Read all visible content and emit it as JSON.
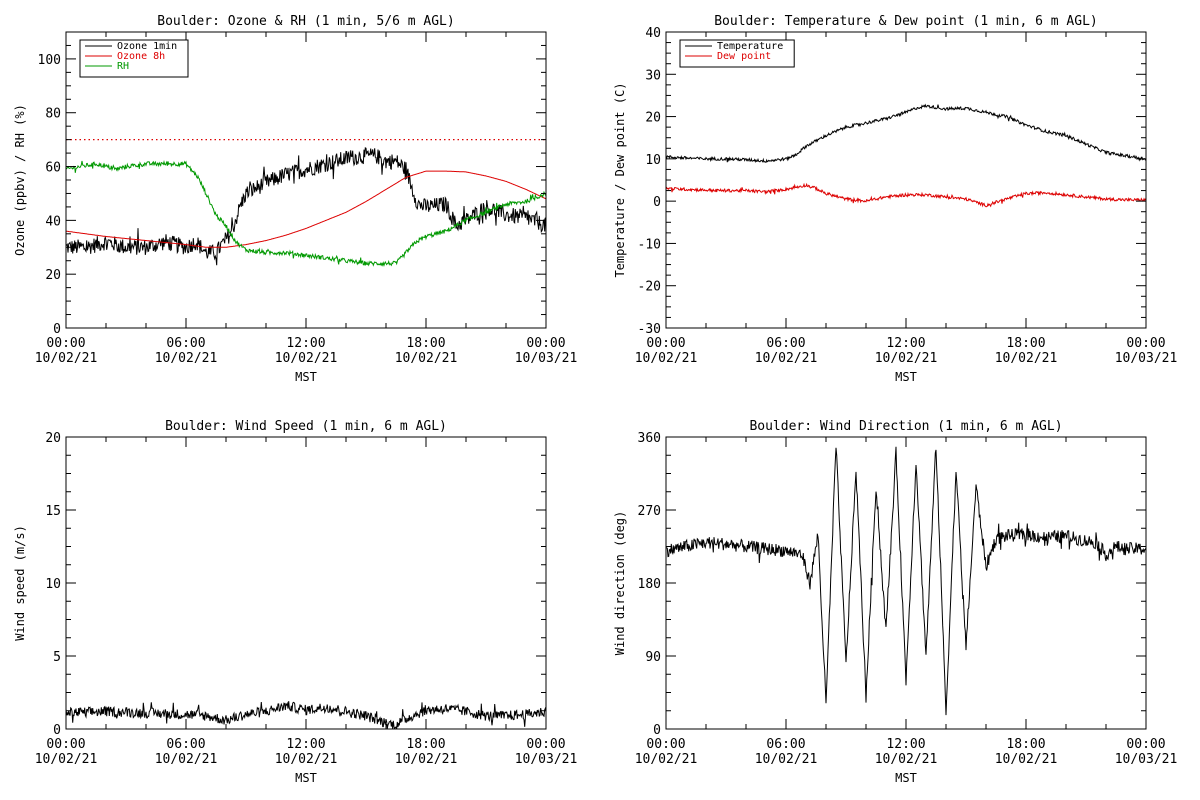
{
  "chart_data": [
    {
      "type": "line",
      "title": "Boulder: Ozone & RH (1 min, 5/6 m AGL)",
      "xlabel": "MST",
      "ylabel": "Ozone (ppbv) / RH (%)",
      "xlim": [
        0,
        24
      ],
      "ylim": [
        0,
        110
      ],
      "x_ticks": [
        0,
        6,
        12,
        18,
        24
      ],
      "x_tick_labels": [
        [
          "00:00",
          "10/02/21"
        ],
        [
          "06:00",
          "10/02/21"
        ],
        [
          "12:00",
          "10/02/21"
        ],
        [
          "18:00",
          "10/02/21"
        ],
        [
          "00:00",
          "10/03/21"
        ]
      ],
      "y_ticks": [
        0,
        20,
        40,
        60,
        80,
        100
      ],
      "legend": {
        "placement": "top-left"
      },
      "reference_lines": [
        {
          "y": 70,
          "style": "dotted",
          "color": "#dd0000"
        }
      ],
      "series": [
        {
          "name": "Ozone 1min",
          "color": "#000000",
          "noise": 3,
          "x": [
            0,
            1,
            2,
            3,
            4,
            5,
            6,
            6.5,
            7,
            7.5,
            8,
            8.3,
            8.7,
            9,
            10,
            11,
            12,
            13,
            14,
            15,
            15.5,
            16,
            16.5,
            17,
            17.3,
            17.6,
            18,
            19,
            19.5,
            20,
            21,
            22,
            23,
            24
          ],
          "y": [
            30,
            30,
            32,
            30,
            30,
            32,
            30,
            32,
            28,
            28,
            33,
            36,
            45,
            50,
            54,
            57,
            59,
            61,
            63,
            64,
            64,
            62,
            62,
            59,
            52,
            46,
            45,
            46,
            38,
            40,
            45,
            42,
            41,
            38
          ]
        },
        {
          "name": "Ozone 8h",
          "color": "#dd0000",
          "noise": 0,
          "x": [
            0,
            2,
            4,
            6,
            7,
            8,
            9,
            10,
            11,
            12,
            13,
            14,
            15,
            16,
            17,
            18,
            19,
            20,
            21,
            22,
            23,
            24
          ],
          "y": [
            36,
            34,
            32.5,
            31,
            30,
            30,
            31,
            32.5,
            34.5,
            37,
            40,
            43,
            47,
            51.5,
            56,
            58.3,
            58.3,
            58,
            56.5,
            54.5,
            51.5,
            48
          ]
        },
        {
          "name": "RH",
          "color": "#009900",
          "noise": 0.8,
          "x": [
            0,
            0.7,
            1.5,
            2.5,
            3,
            4,
            5,
            6,
            6.6,
            7,
            7.5,
            8,
            8.5,
            9,
            10,
            11,
            12,
            13,
            14,
            15,
            16,
            16.5,
            17,
            17.5,
            18,
            19,
            19.5,
            20,
            21,
            22,
            23,
            24
          ],
          "y": [
            59,
            60,
            61,
            59,
            60,
            61,
            61,
            61,
            56,
            50,
            42,
            38,
            32,
            29,
            28,
            28,
            27,
            26,
            25,
            24,
            24,
            24,
            28,
            32,
            34,
            36,
            38,
            40,
            43,
            46,
            47,
            50
          ]
        }
      ]
    },
    {
      "type": "line",
      "title": "Boulder: Temperature & Dew point (1 min, 6 m AGL)",
      "xlabel": "MST",
      "ylabel": "Temperature / Dew point (C)",
      "xlim": [
        0,
        24
      ],
      "ylim": [
        -30,
        40
      ],
      "x_ticks": [
        0,
        6,
        12,
        18,
        24
      ],
      "x_tick_labels": [
        [
          "00:00",
          "10/02/21"
        ],
        [
          "06:00",
          "10/02/21"
        ],
        [
          "12:00",
          "10/02/21"
        ],
        [
          "18:00",
          "10/02/21"
        ],
        [
          "00:00",
          "10/03/21"
        ]
      ],
      "y_ticks": [
        -30,
        -20,
        -10,
        0,
        10,
        20,
        30,
        40
      ],
      "legend": {
        "placement": "top-left"
      },
      "series": [
        {
          "name": "Temperature",
          "color": "#000000",
          "noise": 0.35,
          "x": [
            0,
            1,
            2,
            3,
            4,
            5,
            6,
            6.5,
            7,
            8,
            9,
            10,
            11,
            12,
            12.5,
            13,
            14,
            15,
            16,
            17,
            18,
            19,
            20,
            21,
            22,
            23,
            24
          ],
          "y": [
            10.5,
            10.2,
            10,
            10,
            9.8,
            9.5,
            10,
            11,
            13,
            15.5,
            17.5,
            18.5,
            19.5,
            21,
            22,
            22.5,
            21.8,
            22,
            21,
            20,
            18,
            16.5,
            15.5,
            13.5,
            11.5,
            10.7,
            10
          ]
        },
        {
          "name": "Dew point",
          "color": "#dd0000",
          "noise": 0.35,
          "x": [
            0,
            1,
            2,
            3,
            4,
            5,
            6,
            7,
            7.5,
            8,
            9,
            10,
            11,
            12,
            13,
            14,
            15,
            16,
            17,
            18,
            19,
            20,
            21,
            22,
            23,
            24
          ],
          "y": [
            3,
            2.8,
            2.6,
            2.5,
            2.5,
            2.2,
            2.8,
            3.8,
            3,
            1.8,
            0.5,
            0,
            1,
            1.5,
            1.5,
            1,
            0.5,
            -1,
            0.5,
            1.8,
            2,
            1.5,
            1,
            0.5,
            0.3,
            0.3
          ]
        }
      ]
    },
    {
      "type": "line",
      "title": "Boulder: Wind Speed (1 min, 6 m AGL)",
      "xlabel": "MST",
      "ylabel": "Wind speed (m/s)",
      "xlim": [
        0,
        24
      ],
      "ylim": [
        0,
        20
      ],
      "x_ticks": [
        0,
        6,
        12,
        18,
        24
      ],
      "x_tick_labels": [
        [
          "00:00",
          "10/02/21"
        ],
        [
          "06:00",
          "10/02/21"
        ],
        [
          "12:00",
          "10/02/21"
        ],
        [
          "18:00",
          "10/02/21"
        ],
        [
          "00:00",
          "10/03/21"
        ]
      ],
      "y_ticks": [
        0,
        5,
        10,
        15,
        20
      ],
      "series": [
        {
          "name": "",
          "color": "#000000",
          "noise": 0.35,
          "min": 0,
          "x": [
            0,
            2,
            4,
            6,
            7,
            8,
            9,
            10,
            11,
            12,
            13,
            14,
            15,
            16,
            16.5,
            17,
            18,
            19,
            20,
            21,
            22,
            23,
            24
          ],
          "y": [
            1.1,
            1.2,
            1.1,
            1.0,
            0.9,
            0.6,
            1.0,
            1.2,
            1.6,
            1.3,
            1.5,
            1.2,
            0.9,
            0.4,
            0.3,
            0.7,
            1.3,
            1.4,
            1.2,
            0.9,
            0.9,
            1.0,
            1.2
          ]
        }
      ]
    },
    {
      "type": "line",
      "title": "Boulder: Wind Direction (1 min, 6 m AGL)",
      "xlabel": "MST",
      "ylabel": "Wind direction (deg)",
      "xlim": [
        0,
        24
      ],
      "ylim": [
        0,
        360
      ],
      "x_ticks": [
        0,
        6,
        12,
        18,
        24
      ],
      "x_tick_labels": [
        [
          "00:00",
          "10/02/21"
        ],
        [
          "06:00",
          "10/02/21"
        ],
        [
          "12:00",
          "10/02/21"
        ],
        [
          "18:00",
          "10/02/21"
        ],
        [
          "00:00",
          "10/03/21"
        ]
      ],
      "y_ticks": [
        0,
        90,
        180,
        270,
        360
      ],
      "series": [
        {
          "name": "",
          "color": "#000000",
          "noise": 8,
          "min": 0,
          "max": 360,
          "x": [
            0,
            1,
            2,
            3,
            4,
            5,
            6,
            6.8,
            7.2,
            7.6,
            8,
            8.5,
            9,
            9.5,
            10,
            10.5,
            11,
            11.5,
            12,
            12.5,
            13,
            13.5,
            14,
            14.5,
            15,
            15.5,
            16,
            16.5,
            17,
            18,
            19,
            20,
            21,
            21.5,
            22,
            22.5,
            23,
            24
          ],
          "y": [
            220,
            225,
            230,
            228,
            225,
            222,
            220,
            215,
            180,
            240,
            30,
            350,
            80,
            320,
            40,
            300,
            120,
            340,
            60,
            330,
            90,
            350,
            20,
            320,
            100,
            300,
            200,
            235,
            238,
            240,
            236,
            238,
            232,
            230,
            215,
            225,
            222,
            222
          ]
        }
      ]
    }
  ]
}
